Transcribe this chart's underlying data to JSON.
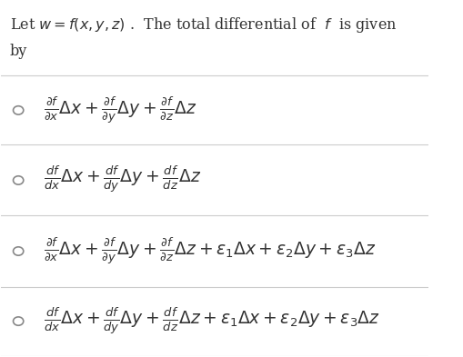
{
  "title_line1": "Let $w = f(x, y, z)$ .  The total differential of  $f$  is given",
  "title_line2": "by",
  "background_color": "#ffffff",
  "text_color": "#333333",
  "option_color": "#555555",
  "figsize": [
    5.1,
    3.93
  ],
  "dpi": 100,
  "options": [
    "$\\frac{\\partial f}{\\partial x}\\Delta x + \\frac{\\partial f}{\\partial y}\\Delta y + \\frac{\\partial f}{\\partial z}\\Delta z$",
    "$\\frac{df}{dx}\\Delta x + \\frac{df}{dy}\\Delta y + \\frac{df}{dz}\\Delta z$",
    "$\\frac{\\partial f}{\\partial x}\\Delta x + \\frac{\\partial f}{\\partial y}\\Delta y + \\frac{\\partial f}{\\partial z}\\Delta z + \\epsilon_1\\Delta x + \\epsilon_2\\Delta y + \\epsilon_3\\Delta z$",
    "$\\frac{df}{dx}\\Delta x + \\frac{df}{dy}\\Delta y + \\frac{df}{dz}\\Delta z + \\epsilon_1\\Delta x + \\epsilon_2\\Delta y + \\epsilon_3\\Delta z$"
  ],
  "divider_color": "#cccccc",
  "circle_color": "#888888",
  "title_fontsize": 11.5,
  "option_fontsize": 13.5
}
